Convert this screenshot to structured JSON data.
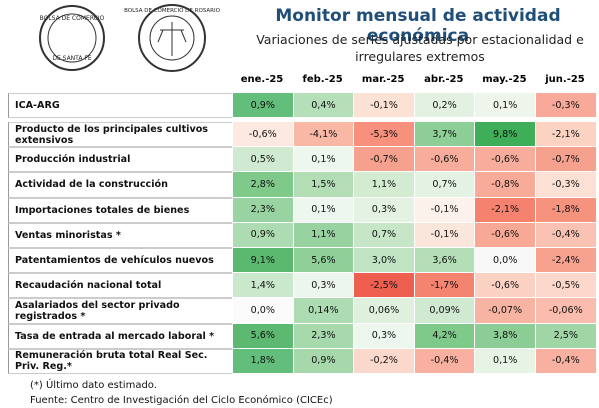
{
  "header": {
    "title": "Monitor mensual de actividad económica",
    "subtitle": "Variaciones de series ajustadas por estacionalidad e irregulares extremos"
  },
  "logos": [
    {
      "top": "BOLSA DE COMERCIO",
      "bottom": "DE SANTA FE"
    },
    {
      "top": "BOLSA DE COMERCIO DE ROSARIO"
    }
  ],
  "table": {
    "columns": [
      "ene.-25",
      "feb.-25",
      "mar.-25",
      "abr.-25",
      "may.-25",
      "jun.-25"
    ],
    "rows": [
      {
        "label": "ICA-ARG",
        "values": [
          "0,9%",
          "0,4%",
          "-0,1%",
          "0,2%",
          "0,1%",
          "-0,3%"
        ],
        "colors": [
          "#63be7b",
          "#b5dfb8",
          "#fbe2d5",
          "#e3f1e2",
          "#eef6ec",
          "#f8a99a"
        ]
      },
      {
        "label": "Producto de los principales cultivos extensivos",
        "values": [
          "-0,6%",
          "-4,1%",
          "-5,3%",
          "3,7%",
          "9,8%",
          "-2,1%"
        ],
        "colors": [
          "#fde9df",
          "#f9b7a5",
          "#f7907d",
          "#8dce96",
          "#3fae58",
          "#fcd3c3"
        ]
      },
      {
        "label": "Producción industrial",
        "values": [
          "0,5%",
          "0,1%",
          "-0,7%",
          "-0,6%",
          "-0,6%",
          "-0,7%"
        ],
        "colors": [
          "#cfead0",
          "#eef7ed",
          "#f6a08e",
          "#f8ad9c",
          "#f8ad9c",
          "#f6a08e"
        ]
      },
      {
        "label": "Actividad de la construcción",
        "values": [
          "2,8%",
          "1,5%",
          "1,1%",
          "0,7%",
          "-0,8%",
          "-0,3%"
        ],
        "colors": [
          "#7fc98b",
          "#b2ddb5",
          "#d2ebd1",
          "#e3f2e2",
          "#f8ab99",
          "#fce0d4"
        ]
      },
      {
        "label": "Importaciones totales de bienes",
        "values": [
          "2,3%",
          "0,1%",
          "0,3%",
          "-0,1%",
          "-2,1%",
          "-1,8%"
        ],
        "colors": [
          "#9ad3a2",
          "#eef7ed",
          "#e3f2e2",
          "#fdf1ec",
          "#f4826f",
          "#f6937f"
        ]
      },
      {
        "label": "Ventas minoristas *",
        "values": [
          "0,9%",
          "1,1%",
          "0,7%",
          "-0,1%",
          "-0,6%",
          "-0,4%"
        ],
        "colors": [
          "#aedcb2",
          "#98d2a0",
          "#c6e6c7",
          "#fbe6dc",
          "#f7a995",
          "#f9c2b3"
        ]
      },
      {
        "label": "Patentamientos de vehículos nuevos",
        "values": [
          "9,1%",
          "5,6%",
          "3,0%",
          "3,6%",
          "0,0%",
          "-2,4%"
        ],
        "colors": [
          "#5ab96f",
          "#8fcf98",
          "#c0e4c2",
          "#b3deb6",
          "#f8f8f8",
          "#f7a18f"
        ]
      },
      {
        "label": "Recaudación nacional total",
        "values": [
          "1,4%",
          "0,3%",
          "-2,5%",
          "-1,7%",
          "-0,6%",
          "-0,5%"
        ],
        "colors": [
          "#cae8cb",
          "#edf6ec",
          "#ee5f4f",
          "#f4836f",
          "#fbd1c4",
          "#fcd8cc"
        ]
      },
      {
        "label": "Asalariados del sector privado registrados *",
        "values": [
          "0,0%",
          "0,14%",
          "0,06%",
          "0,09%",
          "-0,07%",
          "-0,06%"
        ],
        "colors": [
          "#fbfbfb",
          "#aedcb2",
          "#dff0de",
          "#cfead0",
          "#f8b4a3",
          "#f9bcad"
        ]
      },
      {
        "label": "Tasa de entrada al mercado laboral *",
        "values": [
          "5,6%",
          "2,3%",
          "0,3%",
          "4,2%",
          "3,8%",
          "2,5%"
        ],
        "colors": [
          "#5db972",
          "#a8d9ad",
          "#eef7ed",
          "#7fc98b",
          "#8ccd95",
          "#a0d5a6"
        ]
      },
      {
        "label": "Remuneración bruta total Real Sec. Priv. Reg.*",
        "values": [
          "1,8%",
          "0,9%",
          "-0,2%",
          "-0,4%",
          "0,1%",
          "-0,4%"
        ],
        "colors": [
          "#63be7b",
          "#a6d8ab",
          "#fbd8cc",
          "#f8b1a0",
          "#e6f3e5",
          "#f8b1a0"
        ]
      }
    ]
  },
  "footnotes": [
    "(*) Último dato estimado.",
    "Fuente: Centro de Investigación del Ciclo Económico (CICEc)"
  ]
}
